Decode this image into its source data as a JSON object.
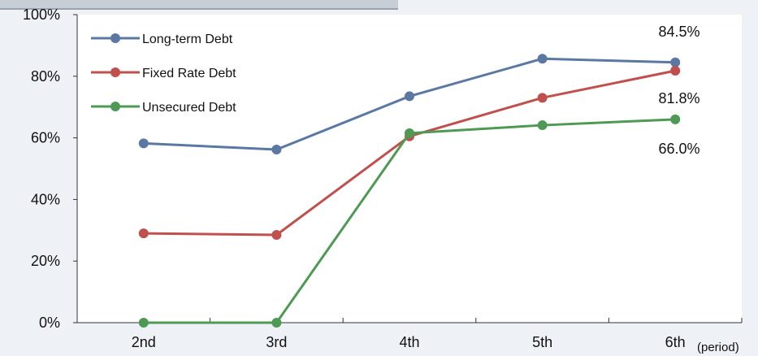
{
  "chart_data": {
    "type": "line",
    "categories": [
      "2nd",
      "3rd",
      "4th",
      "5th",
      "6th"
    ],
    "x_unit": "(period)",
    "ylim": [
      0,
      100
    ],
    "yticks": [
      "0%",
      "20%",
      "40%",
      "60%",
      "80%",
      "100%"
    ],
    "grid": false,
    "legend_position": "top-left",
    "series": [
      {
        "name": "Long-term Debt",
        "color": "#5b78a3",
        "values": [
          58.2,
          56.2,
          73.5,
          85.7,
          84.5
        ]
      },
      {
        "name": "Fixed Rate Debt",
        "color": "#c0504d",
        "values": [
          29.0,
          28.5,
          60.5,
          73.0,
          81.8
        ]
      },
      {
        "name": "Unsecured Debt",
        "color": "#4e9a55",
        "values": [
          0,
          0,
          61.5,
          64.1,
          66.0
        ]
      }
    ],
    "data_labels": [
      {
        "series": 0,
        "index": 4,
        "text": "84.5%"
      },
      {
        "series": 1,
        "index": 4,
        "text": "81.8%"
      },
      {
        "series": 2,
        "index": 4,
        "text": "66.0%"
      }
    ]
  }
}
